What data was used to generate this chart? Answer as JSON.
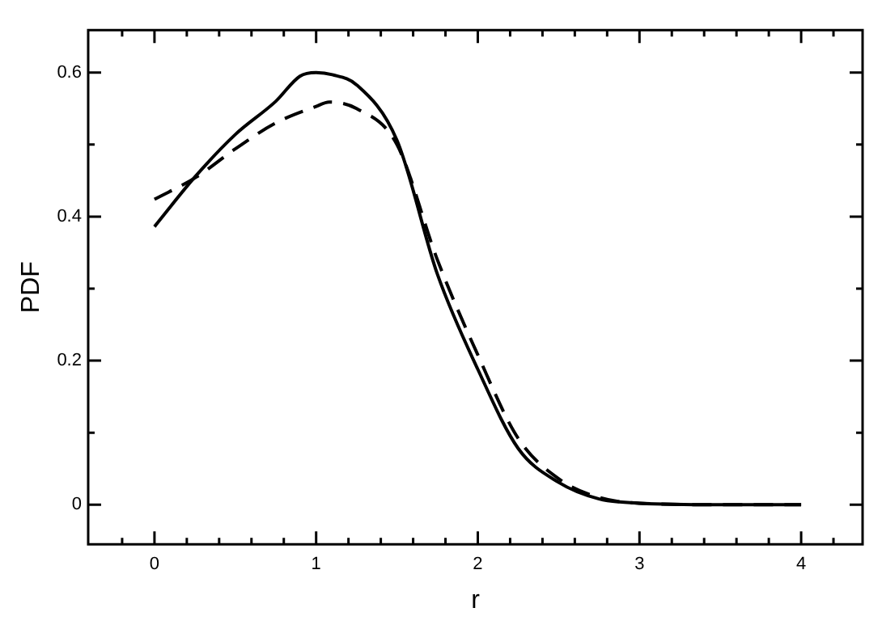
{
  "chart_data": {
    "type": "line",
    "xlabel": "r",
    "ylabel": "PDF",
    "xlim": [
      -0.41,
      4.38
    ],
    "ylim": [
      -0.055,
      0.659
    ],
    "xticks": [
      {
        "value": -0.2,
        "label": null
      },
      0,
      {
        "value": 0.2,
        "label": null
      },
      {
        "value": 0.4,
        "label": null
      },
      {
        "value": 0.6,
        "label": null
      },
      {
        "value": 0.8,
        "label": null
      },
      1,
      {
        "value": 1.2,
        "label": null
      },
      {
        "value": 1.4,
        "label": null
      },
      {
        "value": 1.6,
        "label": null
      },
      {
        "value": 1.8,
        "label": null
      },
      2,
      {
        "value": 2.2,
        "label": null
      },
      {
        "value": 2.4,
        "label": null
      },
      {
        "value": 2.6,
        "label": null
      },
      {
        "value": 2.8,
        "label": null
      },
      3,
      {
        "value": 3.2,
        "label": null
      },
      {
        "value": 3.4,
        "label": null
      },
      {
        "value": 3.6,
        "label": null
      },
      {
        "value": 3.8,
        "label": null
      },
      4,
      {
        "value": 4.2,
        "label": null
      }
    ],
    "yticks": [
      0,
      {
        "value": 0.1,
        "label": null
      },
      0.2,
      {
        "value": 0.3,
        "label": null
      },
      0.4,
      {
        "value": 0.5,
        "label": null
      },
      0.6
    ],
    "grid": false,
    "legend": false,
    "marker": "none",
    "series": [
      {
        "color": "#000000",
        "line_style": "solid",
        "x": [
          0,
          0.25,
          0.5,
          0.75,
          0.9,
          1,
          1.1,
          1.25,
          1.5,
          1.75,
          2,
          2.25,
          2.5,
          2.75,
          3,
          3.5,
          4
        ],
        "values": [
          0.386,
          0.455,
          0.514,
          0.56,
          0.595,
          0.6,
          0.597,
          0.583,
          0.506,
          0.32,
          0.188,
          0.078,
          0.031,
          0.008,
          0.002,
          0,
          0
        ]
      },
      {
        "color": "#000000",
        "line_style": "dashed",
        "x": [
          0,
          0.26,
          0.5,
          0.75,
          1,
          1.08,
          1.25,
          1.5,
          1.75,
          2,
          2.25,
          2.5,
          2.75,
          3,
          3.5,
          4
        ],
        "values": [
          0.424,
          0.455,
          0.494,
          0.53,
          0.553,
          0.559,
          0.55,
          0.5,
          0.34,
          0.208,
          0.092,
          0.036,
          0.01,
          0.002,
          0,
          0
        ]
      }
    ]
  }
}
